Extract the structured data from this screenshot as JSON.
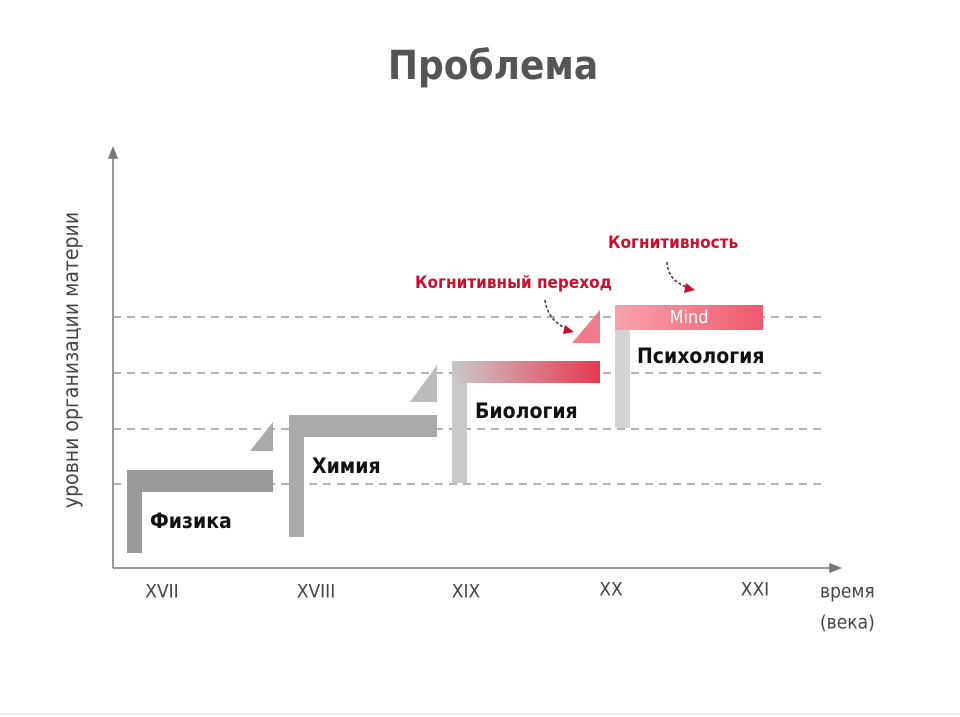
{
  "header": {
    "title": "Проблема"
  },
  "y_axis": {
    "label": "уровни организации материи"
  },
  "x_axis": {
    "labels": [
      "XVII",
      "XVIII",
      "XIX",
      "XX",
      "XXI"
    ],
    "title": [
      "время",
      "(века)"
    ]
  },
  "nodes": [
    {
      "label": "Физика"
    },
    {
      "label": "Химия"
    },
    {
      "label": "Биология"
    },
    {
      "label": "Психология"
    },
    {
      "label": "Mind"
    }
  ],
  "annotations": [
    {
      "label": "Когнитивный переход"
    },
    {
      "label": "Когнитивность"
    }
  ]
}
